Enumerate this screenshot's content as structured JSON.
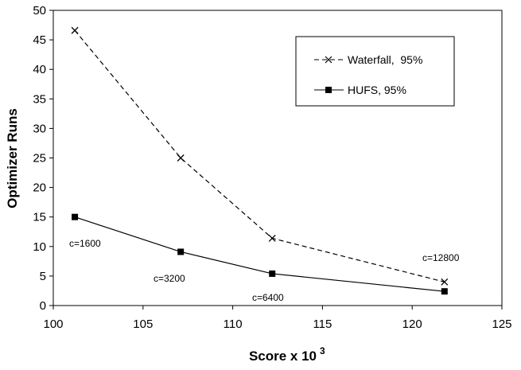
{
  "chart_data": {
    "type": "line",
    "title": "",
    "xlabel": "Score x 10",
    "xlabel_superscript": "3",
    "ylabel": "Optimizer Runs",
    "xlim": [
      100,
      125
    ],
    "ylim": [
      0,
      50
    ],
    "xticks": [
      "100",
      "105",
      "110",
      "115",
      "120",
      "125"
    ],
    "yticks": [
      "0",
      "5",
      "10",
      "15",
      "20",
      "25",
      "30",
      "35",
      "40",
      "45",
      "50"
    ],
    "grid": false,
    "legend_position": "top-right",
    "series": [
      {
        "name": "Waterfall,  95%",
        "style": "dashed",
        "marker": "x",
        "color": "#000000",
        "x": [
          101.2,
          107.1,
          112.2,
          121.8
        ],
        "y": [
          46.6,
          25.0,
          11.4,
          4.0
        ]
      },
      {
        "name": "HUFS, 95%",
        "style": "solid",
        "marker": "square",
        "color": "#000000",
        "x": [
          101.2,
          107.1,
          112.2,
          121.8
        ],
        "y": [
          15.0,
          9.1,
          5.4,
          2.4
        ]
      }
    ],
    "annotations": [
      "c=1600",
      "c=3200",
      "c=6400",
      "c=12800"
    ]
  }
}
